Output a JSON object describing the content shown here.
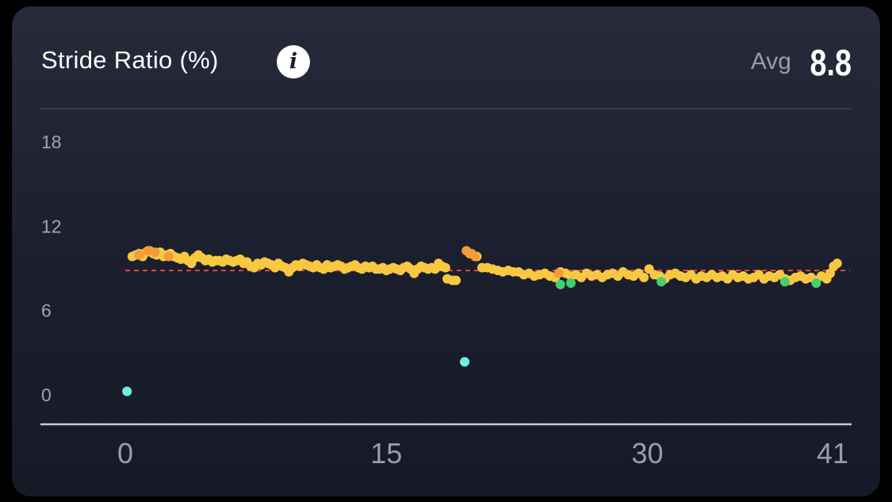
{
  "card": {
    "title": "Stride Ratio (%)",
    "info_icon": "info-icon",
    "info_glyph": "i",
    "avg_label": "Avg",
    "avg_value": "8.8"
  },
  "colors": {
    "background": "#1d2030",
    "normal": "#f9c841",
    "high": "#f39a3a",
    "low": "#42d16b",
    "outlier": "#6ef0e6",
    "average_line": "#d9453f",
    "axis": "#c9cbd2"
  },
  "chart_data": {
    "type": "scatter",
    "title": "Stride Ratio (%)",
    "xlabel": "",
    "ylabel": "",
    "xlim": [
      0,
      41
    ],
    "ylim": [
      0,
      18
    ],
    "x_ticks": [
      0,
      15,
      30,
      41
    ],
    "y_ticks": [
      0,
      6,
      12,
      18
    ],
    "average": 8.8,
    "grid": false,
    "legend": "none",
    "series": [
      {
        "color": "#f9c841",
        "points": [
          [
            0.4,
            9.8
          ],
          [
            0.6,
            9.9
          ],
          [
            0.8,
            10.0
          ],
          [
            1.0,
            9.8
          ],
          [
            1.2,
            10.1
          ],
          [
            1.4,
            10.2
          ],
          [
            1.6,
            10.0
          ],
          [
            1.8,
            9.9
          ],
          [
            2.0,
            10.1
          ],
          [
            2.2,
            9.8
          ],
          [
            2.4,
            9.9
          ],
          [
            2.6,
            10.0
          ],
          [
            2.8,
            9.8
          ],
          [
            3.0,
            9.7
          ],
          [
            3.2,
            9.6
          ],
          [
            3.4,
            9.8
          ],
          [
            3.6,
            9.5
          ],
          [
            3.8,
            9.3
          ],
          [
            4.0,
            9.7
          ],
          [
            4.2,
            9.9
          ],
          [
            4.4,
            9.7
          ],
          [
            4.6,
            9.5
          ],
          [
            4.8,
            9.6
          ],
          [
            5.0,
            9.4
          ],
          [
            5.2,
            9.5
          ],
          [
            5.4,
            9.5
          ],
          [
            5.6,
            9.4
          ],
          [
            5.8,
            9.6
          ],
          [
            6.0,
            9.5
          ],
          [
            6.2,
            9.4
          ],
          [
            6.4,
            9.5
          ],
          [
            6.6,
            9.6
          ],
          [
            6.8,
            9.3
          ],
          [
            7.0,
            9.4
          ],
          [
            7.2,
            9.1
          ],
          [
            7.4,
            9.0
          ],
          [
            7.6,
            9.3
          ],
          [
            7.8,
            9.2
          ],
          [
            8.0,
            9.4
          ],
          [
            8.2,
            9.3
          ],
          [
            8.4,
            9.2
          ],
          [
            8.6,
            9.0
          ],
          [
            8.8,
            9.3
          ],
          [
            9.0,
            9.1
          ],
          [
            9.2,
            9.0
          ],
          [
            9.4,
            8.7
          ],
          [
            9.6,
            9.0
          ],
          [
            9.8,
            9.2
          ],
          [
            10.0,
            9.1
          ],
          [
            10.2,
            9.3
          ],
          [
            10.4,
            9.2
          ],
          [
            10.6,
            9.1
          ],
          [
            10.8,
            9.0
          ],
          [
            11.0,
            9.2
          ],
          [
            11.2,
            9.0
          ],
          [
            11.4,
            8.9
          ],
          [
            11.6,
            9.2
          ],
          [
            11.8,
            9.0
          ],
          [
            12.0,
            9.1
          ],
          [
            12.2,
            9.2
          ],
          [
            12.4,
            9.1
          ],
          [
            12.6,
            8.9
          ],
          [
            12.8,
            9.0
          ],
          [
            13.0,
            9.1
          ],
          [
            13.2,
            9.2
          ],
          [
            13.4,
            9.0
          ],
          [
            13.6,
            8.9
          ],
          [
            13.8,
            9.1
          ],
          [
            14.0,
            9.0
          ],
          [
            14.2,
            9.1
          ],
          [
            14.4,
            8.9
          ],
          [
            14.6,
            8.9
          ],
          [
            14.8,
            9.0
          ],
          [
            15.0,
            8.8
          ],
          [
            15.2,
            8.9
          ],
          [
            15.4,
            9.0
          ],
          [
            15.6,
            8.9
          ],
          [
            15.8,
            8.8
          ],
          [
            16.0,
            9.0
          ],
          [
            16.2,
            9.1
          ],
          [
            16.4,
            8.9
          ],
          [
            16.6,
            8.6
          ],
          [
            16.8,
            8.9
          ],
          [
            17.0,
            9.1
          ],
          [
            17.2,
            9.0
          ],
          [
            17.4,
            8.9
          ],
          [
            17.6,
            9.0
          ],
          [
            17.8,
            8.9
          ],
          [
            18.0,
            9.3
          ],
          [
            18.2,
            9.1
          ],
          [
            18.4,
            9.0
          ],
          [
            18.5,
            8.2
          ],
          [
            18.8,
            8.1
          ],
          [
            19.0,
            8.1
          ],
          [
            19.8,
            10.0
          ],
          [
            20.2,
            9.8
          ],
          [
            20.5,
            9.0
          ],
          [
            20.8,
            9.0
          ],
          [
            21.1,
            8.9
          ],
          [
            21.4,
            8.8
          ],
          [
            21.7,
            8.7
          ],
          [
            22.0,
            8.8
          ],
          [
            22.3,
            8.7
          ],
          [
            22.6,
            8.7
          ],
          [
            22.9,
            8.5
          ],
          [
            23.2,
            8.6
          ],
          [
            23.5,
            8.4
          ],
          [
            23.8,
            8.5
          ],
          [
            24.1,
            8.6
          ],
          [
            24.4,
            8.4
          ],
          [
            24.7,
            8.3
          ],
          [
            25.0,
            8.7
          ],
          [
            25.3,
            8.6
          ],
          [
            25.6,
            8.4
          ],
          [
            25.9,
            8.5
          ],
          [
            26.2,
            8.3
          ],
          [
            26.5,
            8.6
          ],
          [
            26.8,
            8.4
          ],
          [
            27.1,
            8.5
          ],
          [
            27.4,
            8.3
          ],
          [
            27.7,
            8.5
          ],
          [
            28.0,
            8.6
          ],
          [
            28.3,
            8.4
          ],
          [
            28.6,
            8.7
          ],
          [
            28.9,
            8.5
          ],
          [
            29.2,
            8.4
          ],
          [
            29.5,
            8.6
          ],
          [
            29.8,
            8.3
          ],
          [
            30.1,
            8.9
          ],
          [
            30.4,
            8.5
          ],
          [
            30.7,
            8.4
          ],
          [
            31.0,
            8.2
          ],
          [
            31.3,
            8.5
          ],
          [
            31.6,
            8.6
          ],
          [
            31.9,
            8.4
          ],
          [
            32.2,
            8.3
          ],
          [
            32.5,
            8.5
          ],
          [
            32.8,
            8.2
          ],
          [
            33.1,
            8.4
          ],
          [
            33.4,
            8.3
          ],
          [
            33.7,
            8.5
          ],
          [
            34.0,
            8.3
          ],
          [
            34.3,
            8.4
          ],
          [
            34.6,
            8.2
          ],
          [
            34.9,
            8.5
          ],
          [
            35.2,
            8.3
          ],
          [
            35.5,
            8.4
          ],
          [
            35.8,
            8.2
          ],
          [
            36.1,
            8.3
          ],
          [
            36.4,
            8.5
          ],
          [
            36.7,
            8.2
          ],
          [
            37.0,
            8.4
          ],
          [
            37.3,
            8.3
          ],
          [
            37.6,
            8.5
          ],
          [
            37.9,
            8.2
          ],
          [
            38.2,
            8.1
          ],
          [
            38.5,
            8.3
          ],
          [
            38.8,
            8.4
          ],
          [
            39.1,
            8.2
          ],
          [
            39.4,
            8.3
          ],
          [
            39.7,
            8.1
          ],
          [
            40.0,
            8.4
          ],
          [
            40.3,
            8.2
          ],
          [
            40.5,
            8.6
          ],
          [
            40.7,
            9.1
          ],
          [
            40.9,
            9.3
          ]
        ]
      },
      {
        "color": "#f39a3a",
        "points": [
          [
            0.8,
            9.9
          ],
          [
            1.3,
            10.2
          ],
          [
            1.7,
            10.1
          ],
          [
            2.5,
            9.8
          ],
          [
            19.6,
            10.2
          ],
          [
            19.9,
            10.0
          ],
          [
            20.1,
            9.8
          ],
          [
            24.9,
            8.6
          ]
        ]
      },
      {
        "color": "#42d16b",
        "points": [
          [
            25.0,
            7.8
          ],
          [
            25.6,
            7.9
          ],
          [
            30.8,
            8.0
          ],
          [
            37.9,
            8.0
          ],
          [
            39.7,
            7.9
          ]
        ]
      },
      {
        "color": "#6ef0e6",
        "points": [
          [
            0.1,
            0.2
          ],
          [
            19.5,
            2.3
          ]
        ]
      }
    ]
  }
}
